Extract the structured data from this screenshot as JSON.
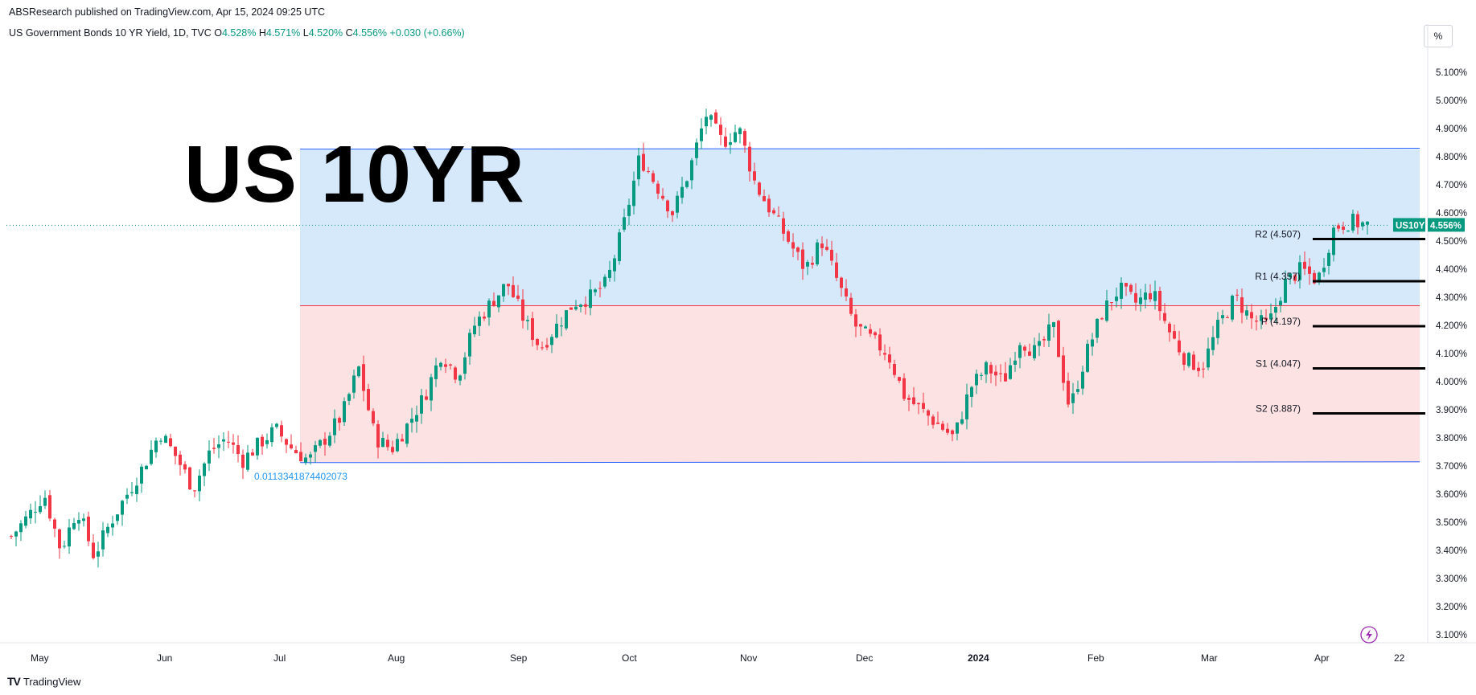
{
  "header": {
    "publisher": "ABSResearch published on TradingView.com, Apr 15, 2024 09:25 UTC",
    "symbol": "US Government Bonds 10 YR Yield, 1D, TVC",
    "ohlc": [
      {
        "k": "O",
        "v": "4.528%"
      },
      {
        "k": "H",
        "v": "4.571%"
      },
      {
        "k": "L",
        "v": "4.520%"
      },
      {
        "k": "C",
        "v": "4.556%"
      }
    ],
    "change": "+0.030 (+0.66%)",
    "percent_button": "%"
  },
  "overlay_title": "US 10YR",
  "footer": {
    "brand": "TradingView",
    "logo": "TV"
  },
  "colors": {
    "up": "#089981",
    "down": "#f23645",
    "blue_zone": "#d6e9fb",
    "red_zone": "#fde2e4",
    "blue_line": "#2962ff",
    "red_line": "#f23645"
  },
  "chart_data": {
    "type": "candlestick",
    "title": "US 10YR",
    "ylim": [
      3.1,
      5.1
    ],
    "y_ticks": [
      "5.100%",
      "5.000%",
      "4.900%",
      "4.800%",
      "4.700%",
      "4.600%",
      "4.500%",
      "4.400%",
      "4.300%",
      "4.200%",
      "4.100%",
      "4.000%",
      "3.900%",
      "3.800%",
      "3.700%",
      "3.600%",
      "3.500%",
      "3.400%",
      "3.300%",
      "3.200%",
      "3.100%"
    ],
    "x_ticks": [
      "May",
      "Jun",
      "Jul",
      "Aug",
      "Sep",
      "Oct",
      "Nov",
      "Dec",
      "2024",
      "Feb",
      "Mar",
      "Apr",
      "22"
    ],
    "close_path": [
      3.45,
      3.52,
      3.6,
      3.4,
      3.55,
      3.38,
      3.5,
      3.6,
      3.7,
      3.82,
      3.73,
      3.62,
      3.75,
      3.8,
      3.72,
      3.78,
      3.83,
      3.76,
      3.72,
      3.8,
      3.88,
      4.05,
      3.8,
      3.76,
      3.85,
      3.95,
      4.1,
      4.02,
      4.2,
      4.28,
      4.35,
      4.22,
      4.12,
      4.2,
      4.28,
      4.3,
      4.35,
      4.55,
      4.8,
      4.7,
      4.6,
      4.75,
      4.95,
      4.85,
      4.9,
      4.7,
      4.6,
      4.5,
      4.4,
      4.5,
      4.35,
      4.2,
      4.15,
      4.1,
      3.95,
      3.9,
      3.85,
      3.8,
      3.98,
      4.05,
      4.0,
      4.15,
      4.1,
      4.2,
      3.9,
      4.1,
      4.25,
      4.33,
      4.28,
      4.32,
      4.18,
      4.08,
      4.05,
      4.2,
      4.3,
      4.22,
      4.2,
      4.35,
      4.4,
      4.36,
      4.55,
      4.57,
      4.556
    ],
    "series": [
      {
        "name": "US10Y",
        "last": "4.556%"
      }
    ],
    "zones": {
      "upper": 4.827,
      "middle": 4.27,
      "lower": 3.712,
      "label": "0.0113341874402073"
    },
    "pivots": [
      {
        "label": "R2 (4.507)",
        "value": 4.507
      },
      {
        "label": "R1 (4.357)",
        "value": 4.357
      },
      {
        "label": "P (4.197)",
        "value": 4.197
      },
      {
        "label": "S1 (4.047)",
        "value": 4.047
      },
      {
        "label": "S2 (3.887)",
        "value": 3.887
      }
    ],
    "last_price_label": "4.556%",
    "last_price_symbol": "US10Y"
  }
}
